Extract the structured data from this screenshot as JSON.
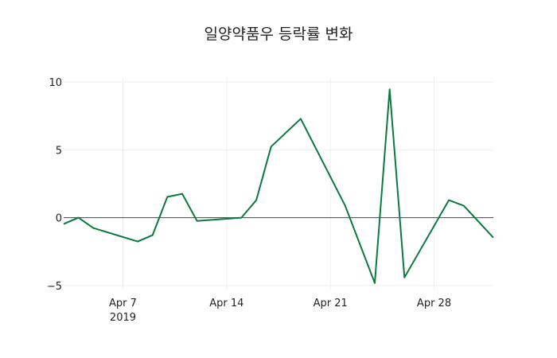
{
  "chart_data": {
    "type": "line",
    "title": "일양약품우 등락률 변화",
    "xlabel": "",
    "ylabel": "",
    "x": [
      "2019-04-03",
      "2019-04-04",
      "2019-04-05",
      "2019-04-08",
      "2019-04-09",
      "2019-04-10",
      "2019-04-11",
      "2019-04-12",
      "2019-04-15",
      "2019-04-16",
      "2019-04-17",
      "2019-04-19",
      "2019-04-22",
      "2019-04-24",
      "2019-04-25",
      "2019-04-26",
      "2019-04-29",
      "2019-04-30",
      "2019-05-02"
    ],
    "series": [
      {
        "name": "등락률",
        "color": "#0a7a3e",
        "values": [
          -0.47,
          0.0,
          -0.76,
          -1.76,
          -1.29,
          1.53,
          1.76,
          -0.24,
          0.0,
          1.29,
          5.24,
          7.29,
          0.88,
          -4.82,
          9.47,
          -4.41,
          1.29,
          0.88,
          -1.47
        ]
      }
    ],
    "ylim": [
      -5.3,
      10.3
    ],
    "xlim": [
      "2019-04-03",
      "2019-05-02"
    ],
    "y_ticks": [
      10,
      5,
      0,
      -5
    ],
    "y_tick_labels": [
      "10",
      "5",
      "0",
      "−5"
    ],
    "x_ticks": [
      "2019-04-07",
      "2019-04-14",
      "2019-04-21",
      "2019-04-28"
    ],
    "x_tick_labels": [
      "Apr 7",
      "Apr 14",
      "Apr 21",
      "Apr 28"
    ],
    "x_tick_sublabel": "2019",
    "grid": true,
    "legend": false
  }
}
